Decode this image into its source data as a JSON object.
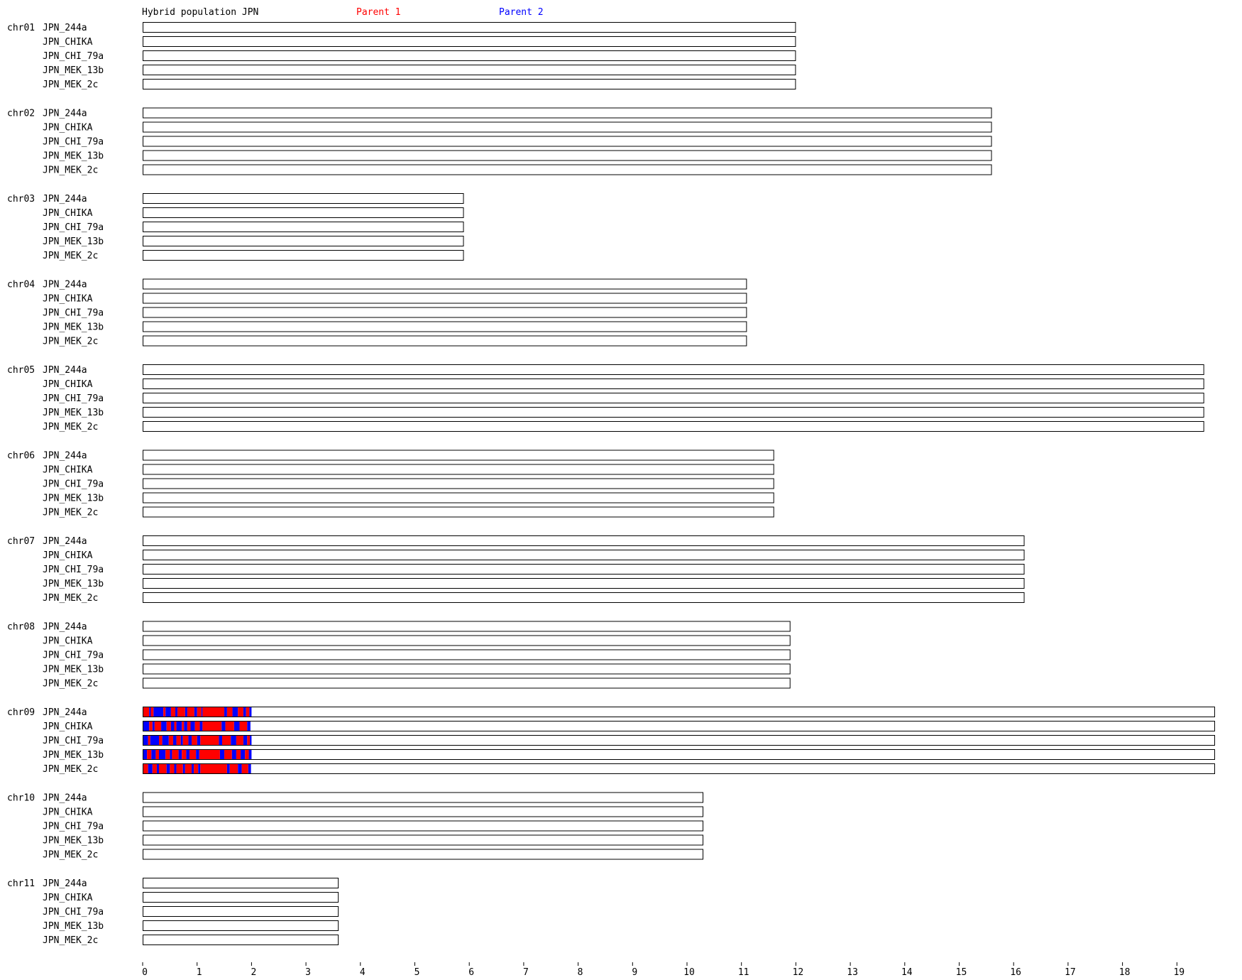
{
  "chart_data": {
    "type": "bar",
    "title": "Hybrid population JPN",
    "legend": [
      {
        "name": "Parent 1",
        "color": "#ff0000"
      },
      {
        "name": "Parent 2",
        "color": "#0000ff"
      }
    ],
    "samples": [
      "JPN_244a",
      "JPN_CHIKA",
      "JPN_CHI_79a",
      "JPN_MEK_13b",
      "JPN_MEK_2c"
    ],
    "chromosomes": [
      {
        "name": "chr01",
        "length": 12.0
      },
      {
        "name": "chr02",
        "length": 15.6
      },
      {
        "name": "chr03",
        "length": 5.9
      },
      {
        "name": "chr04",
        "length": 11.1
      },
      {
        "name": "chr05",
        "length": 19.5
      },
      {
        "name": "chr06",
        "length": 11.6
      },
      {
        "name": "chr07",
        "length": 16.2
      },
      {
        "name": "chr08",
        "length": 11.9
      },
      {
        "name": "chr09",
        "length": 19.7
      },
      {
        "name": "chr10",
        "length": 10.3
      },
      {
        "name": "chr11",
        "length": 3.6
      }
    ],
    "x_ticks": [
      0,
      1,
      2,
      3,
      4,
      5,
      6,
      7,
      8,
      9,
      10,
      11,
      12,
      13,
      14,
      15,
      16,
      17,
      18,
      19
    ],
    "xlim": [
      0,
      19.75
    ],
    "grid": false,
    "segments": {
      "chromosome": "chr09",
      "tracks": [
        [
          [
            0.0,
            0.12,
            "P1"
          ],
          [
            0.12,
            0.15,
            "P2"
          ],
          [
            0.15,
            0.2,
            "P1"
          ],
          [
            0.2,
            0.38,
            "P2"
          ],
          [
            0.38,
            0.42,
            "P1"
          ],
          [
            0.42,
            0.52,
            "P2"
          ],
          [
            0.52,
            0.6,
            "P1"
          ],
          [
            0.6,
            0.64,
            "P2"
          ],
          [
            0.64,
            0.78,
            "P1"
          ],
          [
            0.78,
            0.82,
            "P2"
          ],
          [
            0.82,
            0.95,
            "P1"
          ],
          [
            0.95,
            1.0,
            "P2"
          ],
          [
            1.0,
            1.08,
            "P1"
          ],
          [
            1.08,
            1.1,
            "P2"
          ],
          [
            1.1,
            1.5,
            "P1"
          ],
          [
            1.5,
            1.55,
            "P2"
          ],
          [
            1.55,
            1.65,
            "P1"
          ],
          [
            1.65,
            1.75,
            "P2"
          ],
          [
            1.75,
            1.85,
            "P1"
          ],
          [
            1.85,
            1.9,
            "P2"
          ],
          [
            1.9,
            1.96,
            "P1"
          ],
          [
            1.96,
            2.0,
            "P2"
          ]
        ],
        [
          [
            0.0,
            0.12,
            "P2"
          ],
          [
            0.12,
            0.18,
            "P1"
          ],
          [
            0.18,
            0.22,
            "P2"
          ],
          [
            0.22,
            0.34,
            "P1"
          ],
          [
            0.34,
            0.44,
            "P2"
          ],
          [
            0.44,
            0.52,
            "P1"
          ],
          [
            0.52,
            0.58,
            "P2"
          ],
          [
            0.58,
            0.62,
            "P1"
          ],
          [
            0.62,
            0.72,
            "P2"
          ],
          [
            0.72,
            0.76,
            "P1"
          ],
          [
            0.76,
            0.82,
            "P2"
          ],
          [
            0.82,
            0.88,
            "P1"
          ],
          [
            0.88,
            0.96,
            "P2"
          ],
          [
            0.96,
            1.05,
            "P1"
          ],
          [
            1.05,
            1.1,
            "P2"
          ],
          [
            1.1,
            1.45,
            "P1"
          ],
          [
            1.45,
            1.52,
            "P2"
          ],
          [
            1.52,
            1.68,
            "P1"
          ],
          [
            1.68,
            1.78,
            "P2"
          ],
          [
            1.78,
            1.92,
            "P1"
          ],
          [
            1.92,
            1.98,
            "P2"
          ]
        ],
        [
          [
            0.0,
            0.1,
            "P2"
          ],
          [
            0.1,
            0.14,
            "P1"
          ],
          [
            0.14,
            0.3,
            "P2"
          ],
          [
            0.3,
            0.36,
            "P1"
          ],
          [
            0.36,
            0.48,
            "P2"
          ],
          [
            0.48,
            0.56,
            "P1"
          ],
          [
            0.56,
            0.62,
            "P2"
          ],
          [
            0.62,
            0.7,
            "P1"
          ],
          [
            0.7,
            0.74,
            "P2"
          ],
          [
            0.74,
            0.84,
            "P1"
          ],
          [
            0.84,
            0.9,
            "P2"
          ],
          [
            0.9,
            1.0,
            "P1"
          ],
          [
            1.0,
            1.06,
            "P2"
          ],
          [
            1.06,
            1.4,
            "P1"
          ],
          [
            1.4,
            1.46,
            "P2"
          ],
          [
            1.46,
            1.62,
            "P1"
          ],
          [
            1.62,
            1.72,
            "P2"
          ],
          [
            1.72,
            1.85,
            "P1"
          ],
          [
            1.85,
            1.92,
            "P2"
          ],
          [
            1.92,
            1.97,
            "P1"
          ],
          [
            1.97,
            2.0,
            "P2"
          ]
        ],
        [
          [
            0.0,
            0.08,
            "P2"
          ],
          [
            0.08,
            0.16,
            "P1"
          ],
          [
            0.16,
            0.24,
            "P2"
          ],
          [
            0.24,
            0.3,
            "P1"
          ],
          [
            0.3,
            0.42,
            "P2"
          ],
          [
            0.42,
            0.5,
            "P1"
          ],
          [
            0.5,
            0.54,
            "P2"
          ],
          [
            0.54,
            0.66,
            "P1"
          ],
          [
            0.66,
            0.72,
            "P2"
          ],
          [
            0.72,
            0.8,
            "P1"
          ],
          [
            0.8,
            0.86,
            "P2"
          ],
          [
            0.86,
            0.98,
            "P1"
          ],
          [
            0.98,
            1.04,
            "P2"
          ],
          [
            1.04,
            1.42,
            "P1"
          ],
          [
            1.42,
            1.5,
            "P2"
          ],
          [
            1.5,
            1.64,
            "P1"
          ],
          [
            1.64,
            1.72,
            "P2"
          ],
          [
            1.72,
            1.8,
            "P1"
          ],
          [
            1.8,
            1.88,
            "P2"
          ],
          [
            1.88,
            1.95,
            "P1"
          ],
          [
            1.95,
            2.0,
            "P2"
          ]
        ],
        [
          [
            0.0,
            0.1,
            "P1"
          ],
          [
            0.1,
            0.18,
            "P2"
          ],
          [
            0.18,
            0.26,
            "P1"
          ],
          [
            0.26,
            0.3,
            "P2"
          ],
          [
            0.3,
            0.44,
            "P1"
          ],
          [
            0.44,
            0.5,
            "P2"
          ],
          [
            0.5,
            0.58,
            "P1"
          ],
          [
            0.58,
            0.62,
            "P2"
          ],
          [
            0.62,
            0.74,
            "P1"
          ],
          [
            0.74,
            0.78,
            "P2"
          ],
          [
            0.78,
            0.9,
            "P1"
          ],
          [
            0.9,
            0.94,
            "P2"
          ],
          [
            0.94,
            1.02,
            "P1"
          ],
          [
            1.02,
            1.06,
            "P2"
          ],
          [
            1.06,
            1.55,
            "P1"
          ],
          [
            1.55,
            1.6,
            "P2"
          ],
          [
            1.6,
            1.75,
            "P1"
          ],
          [
            1.75,
            1.82,
            "P2"
          ],
          [
            1.82,
            1.94,
            "P1"
          ],
          [
            1.94,
            1.99,
            "P2"
          ]
        ]
      ]
    }
  }
}
